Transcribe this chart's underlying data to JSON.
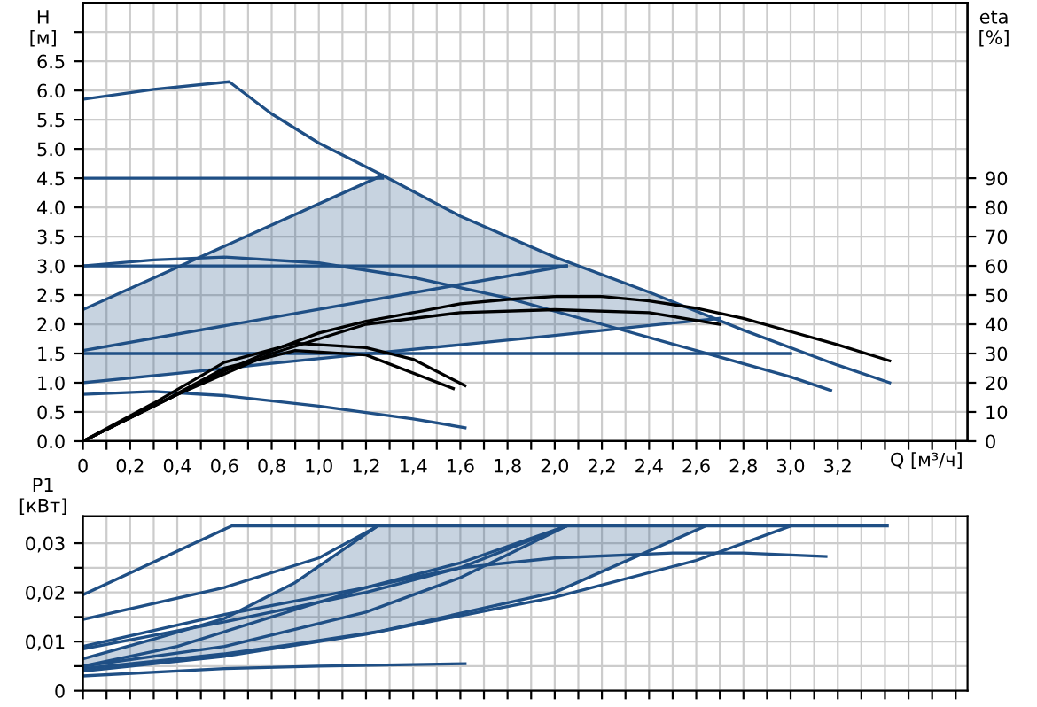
{
  "chart_data": [
    {
      "type": "line",
      "xlabel": "Q [м³/ч]",
      "ylabel": "H\n[м]",
      "y2label": "eta\n[%]",
      "grid": true,
      "xlim": [
        0,
        3.75
      ],
      "ylim": [
        0,
        7.5
      ],
      "y2lim": [
        0,
        150
      ],
      "xticks": [
        {
          "value": 0,
          "label": "0"
        },
        {
          "value": 0.1,
          "label": null
        },
        {
          "value": 0.2,
          "label": "0,2"
        },
        {
          "value": 0.3,
          "label": null
        },
        {
          "value": 0.4,
          "label": "0,4"
        },
        {
          "value": 0.5,
          "label": null
        },
        {
          "value": 0.6,
          "label": "0,6"
        },
        {
          "value": 0.7,
          "label": null
        },
        {
          "value": 0.8,
          "label": "0,8"
        },
        {
          "value": 0.9,
          "label": null
        },
        {
          "value": 1.0,
          "label": "1,0"
        },
        {
          "value": 1.1,
          "label": null
        },
        {
          "value": 1.2,
          "label": "1,2"
        },
        {
          "value": 1.3,
          "label": null
        },
        {
          "value": 1.4,
          "label": "1,4"
        },
        {
          "value": 1.5,
          "label": null
        },
        {
          "value": 1.6,
          "label": "1,6"
        },
        {
          "value": 1.7,
          "label": null
        },
        {
          "value": 1.8,
          "label": "1,8"
        },
        {
          "value": 1.9,
          "label": null
        },
        {
          "value": 2.0,
          "label": "2,0"
        },
        {
          "value": 2.1,
          "label": null
        },
        {
          "value": 2.2,
          "label": "2,2"
        },
        {
          "value": 2.3,
          "label": null
        },
        {
          "value": 2.4,
          "label": "2,4"
        },
        {
          "value": 2.5,
          "label": null
        },
        {
          "value": 2.6,
          "label": "2,6"
        },
        {
          "value": 2.7,
          "label": null
        },
        {
          "value": 2.8,
          "label": "2,8"
        },
        {
          "value": 2.9,
          "label": null
        },
        {
          "value": 3.0,
          "label": "3,0"
        },
        {
          "value": 3.1,
          "label": null
        },
        {
          "value": 3.2,
          "label": "3,2"
        },
        {
          "value": 3.3,
          "label": null
        },
        {
          "value": 3.4,
          "label": null
        },
        {
          "value": 3.5,
          "label": null
        },
        {
          "value": 3.6,
          "label": null
        },
        {
          "value": 3.7,
          "label": null
        }
      ],
      "yticks": [
        {
          "value": 0,
          "label": "0.0"
        },
        {
          "value": 0.5,
          "label": "0.5"
        },
        {
          "value": 1.0,
          "label": "1.0"
        },
        {
          "value": 1.5,
          "label": "1.5"
        },
        {
          "value": 2.0,
          "label": "2.0"
        },
        {
          "value": 2.5,
          "label": "2.5"
        },
        {
          "value": 3.0,
          "label": "3.0"
        },
        {
          "value": 3.5,
          "label": "3.5"
        },
        {
          "value": 4.0,
          "label": "4.0"
        },
        {
          "value": 4.5,
          "label": "4.5"
        },
        {
          "value": 5.0,
          "label": "5.0"
        },
        {
          "value": 5.5,
          "label": "5.5"
        },
        {
          "value": 6.0,
          "label": "6.0"
        },
        {
          "value": 6.5,
          "label": "6.5"
        },
        {
          "value": 7.0,
          "label": null
        }
      ],
      "y2ticks": [
        0,
        10,
        20,
        30,
        40,
        50,
        60,
        70,
        80,
        90
      ],
      "series": [
        {
          "color": "#1f4f85",
          "x": [
            0,
            0.3,
            0.62,
            0.8,
            1.0,
            1.27,
            1.6,
            2.0,
            2.4,
            2.8,
            3.2,
            3.42
          ],
          "values": [
            5.85,
            6.02,
            6.15,
            5.6,
            5.1,
            4.55,
            3.85,
            3.15,
            2.55,
            1.9,
            1.3,
            1.0
          ]
        },
        {
          "color": "#1f4f85",
          "x": [
            0,
            1.27
          ],
          "values": [
            4.5,
            4.5
          ]
        },
        {
          "color": "#1f4f85",
          "x": [
            0,
            1.27
          ],
          "values": [
            2.25,
            4.55
          ]
        },
        {
          "color": "#1f4f85",
          "x": [
            0,
            2.05
          ],
          "values": [
            3.0,
            3.0
          ]
        },
        {
          "color": "#1f4f85",
          "x": [
            0,
            2.05
          ],
          "values": [
            1.55,
            3.0
          ]
        },
        {
          "color": "#1f4f85",
          "x": [
            0,
            3.0
          ],
          "values": [
            1.5,
            1.5
          ]
        },
        {
          "color": "#1f4f85",
          "x": [
            0,
            0.4,
            0.8,
            1.27,
            1.6,
            2.0,
            2.4,
            2.7
          ],
          "values": [
            1.0,
            1.16,
            1.33,
            1.52,
            1.65,
            1.81,
            1.98,
            2.1
          ],
          "lower": [
            1.0,
            1.16,
            1.33,
            1.52,
            1.65,
            1.81,
            1.98,
            2.1
          ],
          "upper": [
            2.25,
            2.97,
            3.7,
            4.55,
            3.85,
            3.15,
            2.55,
            2.1
          ]
        },
        {
          "color": "#1f4f85",
          "x": [
            0,
            0.3,
            0.6,
            1.0,
            1.4,
            1.8,
            2.2,
            2.6,
            3.0,
            3.17
          ],
          "values": [
            3.0,
            3.1,
            3.15,
            3.05,
            2.8,
            2.45,
            2.0,
            1.55,
            1.1,
            0.87
          ]
        },
        {
          "color": "#1f4f85",
          "x": [
            0,
            0.3,
            0.6,
            1.0,
            1.4,
            1.62
          ],
          "values": [
            0.8,
            0.85,
            0.78,
            0.6,
            0.38,
            0.23
          ]
        },
        {
          "color": "#000000",
          "axis": "y2",
          "x": [
            0,
            0.2,
            0.4,
            0.6,
            0.8,
            1.0,
            1.2,
            1.4,
            1.6,
            1.8,
            2.0,
            2.2,
            2.4,
            2.6,
            2.8,
            3.0,
            3.2,
            3.42
          ],
          "values": [
            0,
            8,
            16,
            24,
            31,
            37,
            41,
            44,
            47,
            48.5,
            49.5,
            49.5,
            48,
            45.5,
            42,
            37.5,
            33,
            27.5
          ]
        },
        {
          "color": "#000000",
          "axis": "y2",
          "x": [
            0,
            0.4,
            0.8,
            1.2,
            1.6,
            2.0,
            2.4,
            2.7
          ],
          "values": [
            0,
            16,
            30,
            40,
            44,
            45,
            44,
            40
          ]
        },
        {
          "color": "#000000",
          "axis": "y2",
          "x": [
            0,
            0.3,
            0.6,
            0.9,
            1.2,
            1.4,
            1.62
          ],
          "values": [
            0,
            13,
            27,
            33.5,
            32,
            28,
            19
          ]
        },
        {
          "color": "#000000",
          "axis": "y2",
          "x": [
            0,
            0.3,
            0.6,
            0.9,
            1.2,
            1.57
          ],
          "values": [
            0,
            12,
            25,
            31,
            29.5,
            18
          ]
        }
      ]
    },
    {
      "type": "line",
      "ylabel": "P1\n[кВт]",
      "grid": true,
      "tick_labels": "y",
      "xlim": [
        0,
        3.75
      ],
      "ylim": [
        0,
        0.0355
      ],
      "xticks": [
        0,
        0.1,
        0.2,
        0.3,
        0.4,
        0.5,
        0.6,
        0.7,
        0.8,
        0.9,
        1.0,
        1.1,
        1.2,
        1.3,
        1.4,
        1.5,
        1.6,
        1.7,
        1.8,
        1.9,
        2.0,
        2.1,
        2.2,
        2.3,
        2.4,
        2.5,
        2.6,
        2.7,
        2.8,
        2.9,
        3.0,
        3.1,
        3.2,
        3.3,
        3.4,
        3.5,
        3.6,
        3.7
      ],
      "yticks": [
        {
          "value": 0,
          "label": "0"
        },
        {
          "value": 0.005,
          "label": null
        },
        {
          "value": 0.01,
          "label": "0,01"
        },
        {
          "value": 0.015,
          "label": null
        },
        {
          "value": 0.02,
          "label": "0,02"
        },
        {
          "value": 0.025,
          "label": null
        },
        {
          "value": 0.03,
          "label": "0,03"
        }
      ],
      "series": [
        {
          "color": "#1f4f85",
          "x": [
            0,
            0.63,
            3.41
          ],
          "values": [
            0.0195,
            0.0335,
            0.0335
          ]
        },
        {
          "color": "#1f4f85",
          "x": [
            0,
            0.6,
            1.0,
            1.25
          ],
          "values": [
            0.0145,
            0.021,
            0.027,
            0.0335
          ]
        },
        {
          "color": "#1f4f85",
          "x": [
            0,
            0.3,
            0.6,
            0.9,
            1.25
          ],
          "values": [
            0.0065,
            0.0105,
            0.0147,
            0.022,
            0.0335
          ]
        },
        {
          "color": "#1f4f85",
          "x": [
            0,
            0.6,
            1.2,
            1.6,
            2.05
          ],
          "values": [
            0.009,
            0.0155,
            0.021,
            0.026,
            0.0335
          ]
        },
        {
          "color": "#1f4f85",
          "x": [
            0,
            0.6,
            1.2,
            1.6,
            2.05
          ],
          "values": [
            0.0085,
            0.014,
            0.02,
            0.025,
            0.0335
          ]
        },
        {
          "color": "#1f4f85",
          "x": [
            0,
            0.6,
            1.2,
            1.6,
            2.05
          ],
          "values": [
            0.005,
            0.009,
            0.016,
            0.023,
            0.0335
          ]
        },
        {
          "color": "#1f4f85",
          "x": [
            0,
            0.3,
            0.6,
            0.9,
            1.25,
            2.0,
            2.64
          ],
          "values": [
            0.0045,
            0.006,
            0.0075,
            0.0095,
            0.012,
            0.02,
            0.0335
          ],
          "lower": [
            0.0045,
            0.006,
            0.0075,
            0.0095,
            0.012,
            0.02,
            0.0335
          ],
          "upper": [
            0.0065,
            0.0105,
            0.0147,
            0.022,
            0.0335,
            0.0335,
            0.0335
          ]
        },
        {
          "color": "#1f4f85",
          "x": [
            0,
            0.6,
            1.2,
            2.0,
            2.6,
            3.0
          ],
          "values": [
            0.004,
            0.007,
            0.0115,
            0.019,
            0.0265,
            0.0335
          ]
        },
        {
          "color": "#1f4f85",
          "x": [
            0,
            0.4,
            0.8,
            1.2,
            1.6,
            2.0,
            2.5,
            2.8,
            3.15
          ],
          "values": [
            0.005,
            0.009,
            0.015,
            0.021,
            0.025,
            0.027,
            0.028,
            0.028,
            0.0273
          ]
        },
        {
          "color": "#1f4f85",
          "x": [
            0,
            0.6,
            1.0,
            1.62
          ],
          "values": [
            0.003,
            0.0045,
            0.005,
            0.0055
          ]
        }
      ]
    }
  ]
}
